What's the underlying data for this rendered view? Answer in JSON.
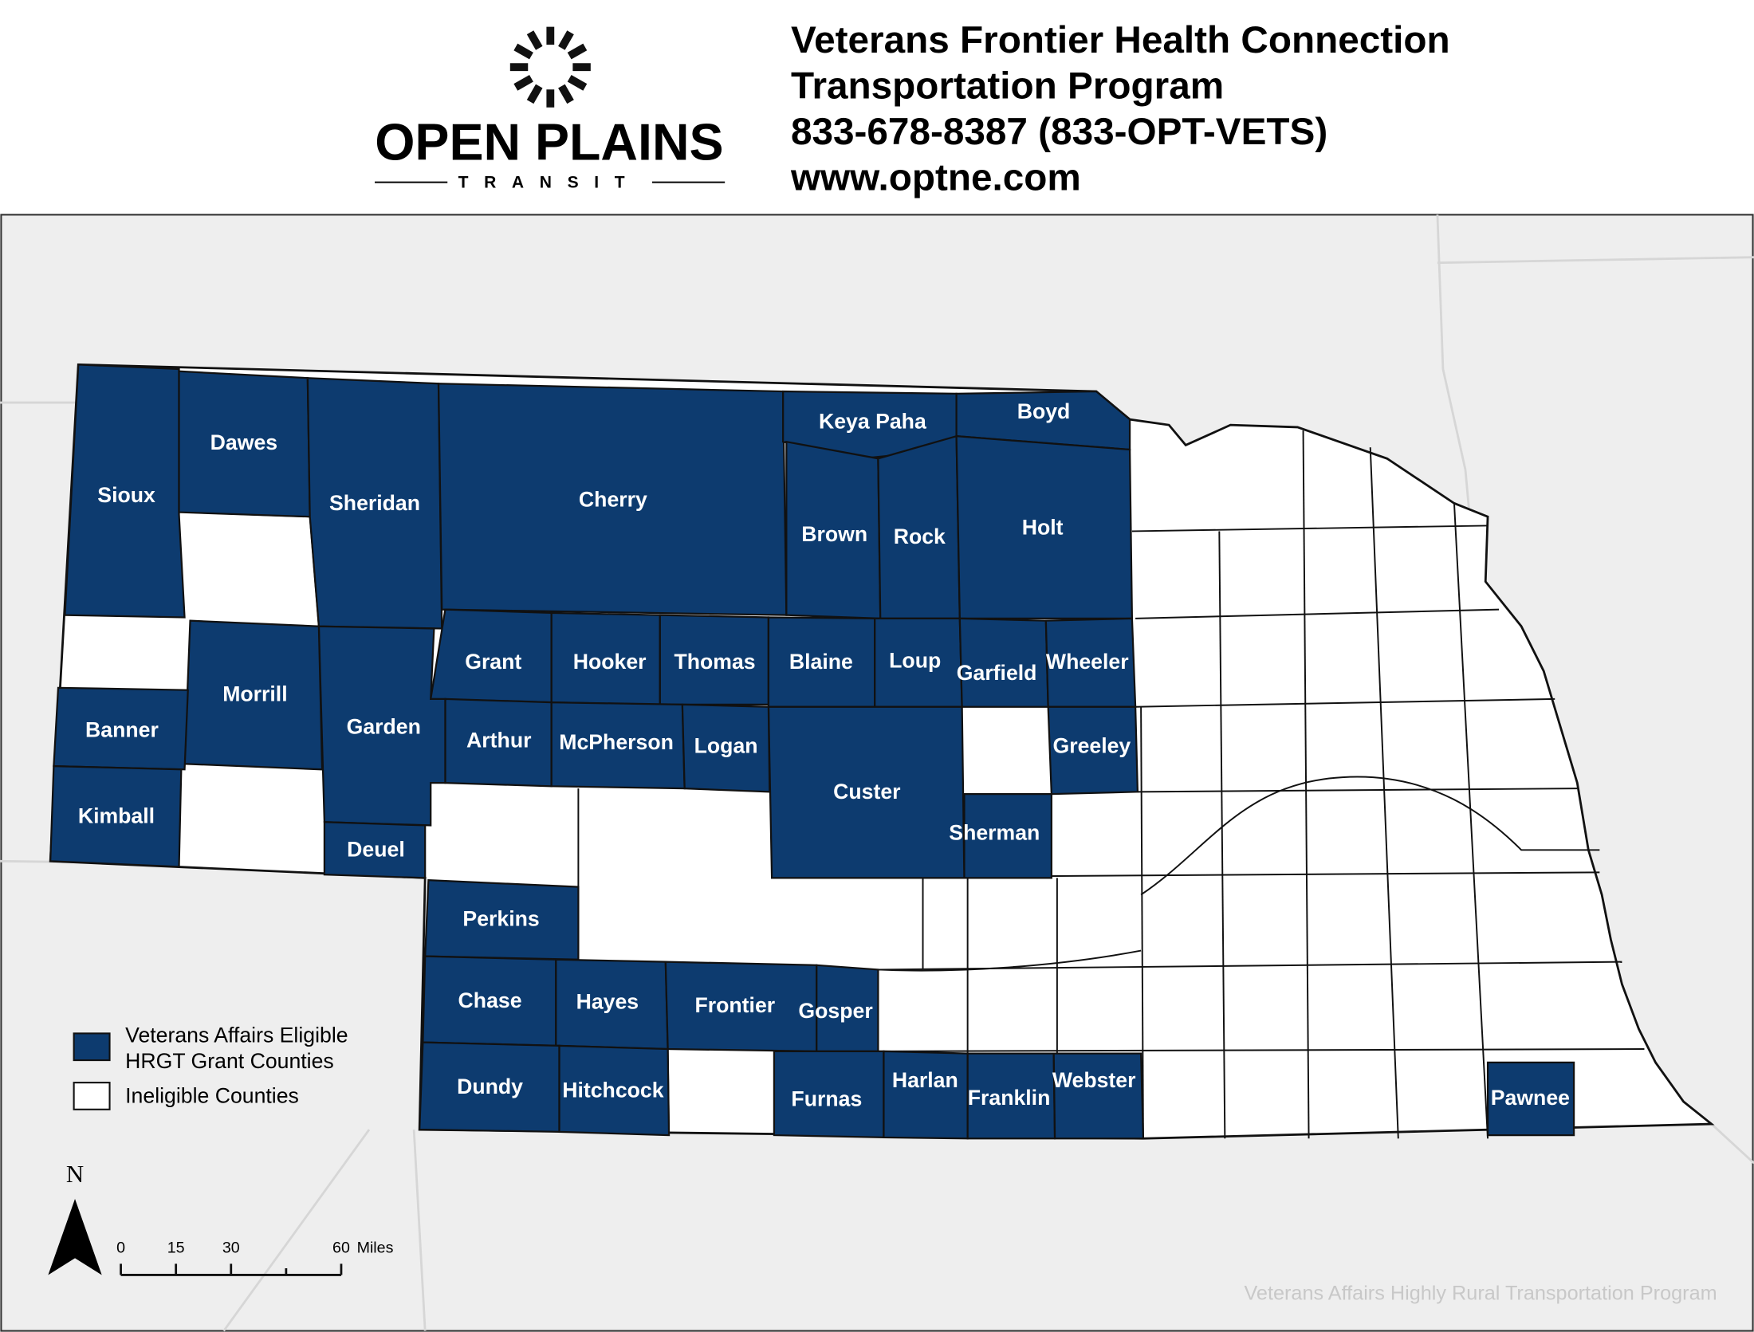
{
  "header": {
    "logo": {
      "name": "OPEN PLAINS",
      "subname": "TRANSIT"
    },
    "lines": [
      "Veterans Frontier Health Connection",
      "Transportation Program",
      "833-678-8387 (833-OPT-VETS)",
      "www.optne.com"
    ]
  },
  "map": {
    "counties": [
      "Sioux",
      "Dawes",
      "Sheridan",
      "Cherry",
      "Keya Paha",
      "Boyd",
      "Brown",
      "Rock",
      "Holt",
      "Grant",
      "Hooker",
      "Thomas",
      "Blaine",
      "Loup",
      "Garfield",
      "Wheeler",
      "Greeley",
      "Sherman",
      "Custer",
      "Arthur",
      "McPherson",
      "Logan",
      "Garden",
      "Deuel",
      "Morrill",
      "Banner",
      "Kimball",
      "Perkins",
      "Chase",
      "Hayes",
      "Frontier",
      "Gosper",
      "Dundy",
      "Hitchcock",
      "Furnas",
      "Harlan",
      "Franklin",
      "Webster",
      "Pawnee"
    ],
    "legend": [
      {
        "label": [
          "Veterans Affairs Eligible",
          "HRGT Grant Counties"
        ],
        "color": "#0d3b6f"
      },
      {
        "label": [
          "Ineligible Counties"
        ],
        "color": "#ffffff"
      }
    ],
    "north": "N",
    "scale_bar": {
      "ticks": [
        0,
        15,
        30,
        60
      ],
      "unit": "Miles"
    },
    "watermark": "Veterans Affairs Highly Rural Transportation Program"
  }
}
